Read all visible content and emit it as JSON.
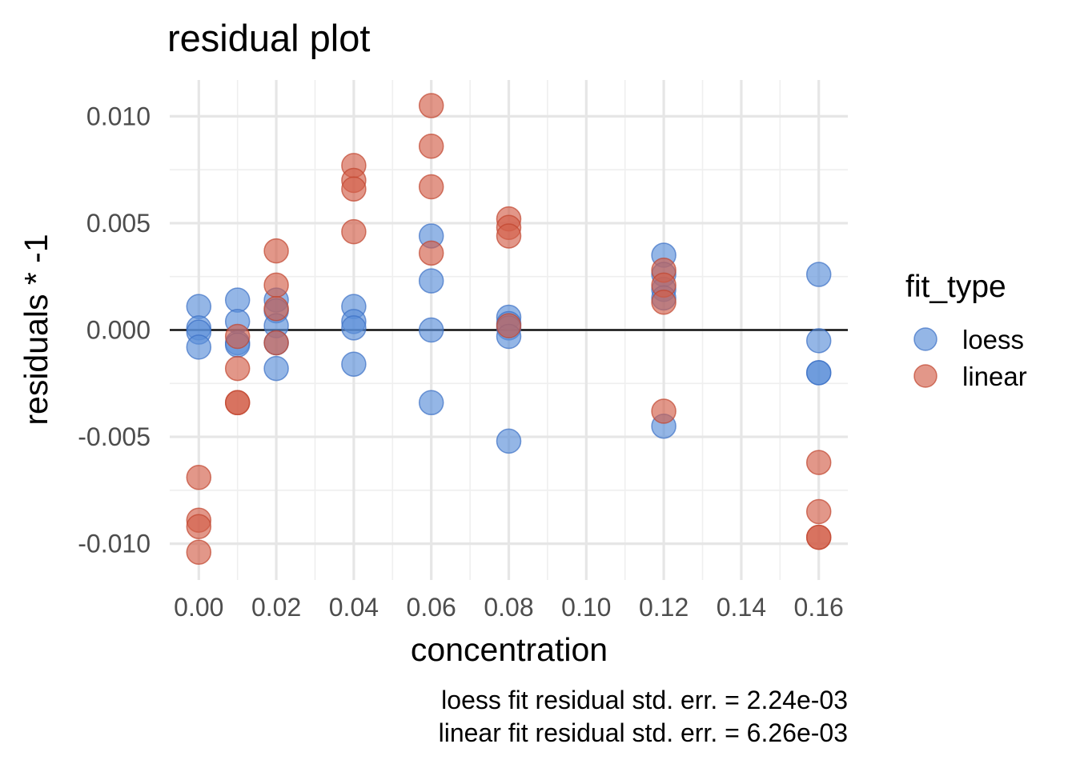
{
  "chart_data": {
    "type": "scatter",
    "title": "residual plot",
    "xlabel": "concentration",
    "ylabel": "residuals * -1",
    "xlim": [
      -0.0075,
      0.1675
    ],
    "ylim": [
      -0.0117,
      0.0117
    ],
    "x_ticks": [
      0.0,
      0.02,
      0.04,
      0.06,
      0.08,
      0.1,
      0.12,
      0.14,
      0.16
    ],
    "x_tick_labels": [
      "0.00",
      "0.02",
      "0.04",
      "0.06",
      "0.08",
      "0.10",
      "0.12",
      "0.14",
      "0.16"
    ],
    "y_ticks": [
      -0.01,
      -0.005,
      0.0,
      0.005,
      0.01
    ],
    "y_tick_labels": [
      "-0.010",
      "-0.005",
      "0.000",
      "0.005",
      "0.010"
    ],
    "grid": true,
    "reference_line_y": 0.0,
    "legend": {
      "title": "fit_type",
      "position": "right",
      "entries": [
        {
          "label": "loess",
          "color": "#5b8fd9"
        },
        {
          "label": "linear",
          "color": "#d3604a"
        }
      ]
    },
    "series": [
      {
        "name": "loess",
        "color": "#5b8fd9",
        "points": [
          [
            0.0,
            0.0011
          ],
          [
            0.0,
            0.0001
          ],
          [
            0.0,
            -0.0001
          ],
          [
            0.0,
            -0.0008
          ],
          [
            0.01,
            0.0014
          ],
          [
            0.01,
            0.0004
          ],
          [
            0.01,
            -0.0006
          ],
          [
            0.01,
            -0.0007
          ],
          [
            0.02,
            0.0014
          ],
          [
            0.02,
            0.0009
          ],
          [
            0.02,
            0.0002
          ],
          [
            0.02,
            -0.0006
          ],
          [
            0.02,
            -0.0018
          ],
          [
            0.04,
            0.0011
          ],
          [
            0.04,
            0.0004
          ],
          [
            0.04,
            0.0001
          ],
          [
            0.04,
            -0.0016
          ],
          [
            0.06,
            0.0044
          ],
          [
            0.06,
            0.0023
          ],
          [
            0.06,
            0.0
          ],
          [
            0.06,
            -0.0034
          ],
          [
            0.08,
            0.0006
          ],
          [
            0.08,
            0.0003
          ],
          [
            0.08,
            0.0001
          ],
          [
            0.08,
            -0.0003
          ],
          [
            0.08,
            -0.0052
          ],
          [
            0.12,
            0.0035
          ],
          [
            0.12,
            0.0026
          ],
          [
            0.12,
            0.0019
          ],
          [
            0.12,
            0.0015
          ],
          [
            0.12,
            -0.0045
          ],
          [
            0.16,
            0.0026
          ],
          [
            0.16,
            -0.0005
          ],
          [
            0.16,
            -0.002
          ],
          [
            0.16,
            -0.002
          ]
        ]
      },
      {
        "name": "linear",
        "color": "#d3604a",
        "points": [
          [
            0.0,
            -0.0069
          ],
          [
            0.0,
            -0.0089
          ],
          [
            0.0,
            -0.0092
          ],
          [
            0.0,
            -0.0104
          ],
          [
            0.01,
            -0.0003
          ],
          [
            0.01,
            -0.0018
          ],
          [
            0.01,
            -0.0034
          ],
          [
            0.01,
            -0.0034
          ],
          [
            0.02,
            0.0037
          ],
          [
            0.02,
            0.0021
          ],
          [
            0.02,
            0.001
          ],
          [
            0.02,
            -0.0006
          ],
          [
            0.04,
            0.0077
          ],
          [
            0.04,
            0.007
          ],
          [
            0.04,
            0.0066
          ],
          [
            0.04,
            0.0046
          ],
          [
            0.06,
            0.0105
          ],
          [
            0.06,
            0.0086
          ],
          [
            0.06,
            0.0067
          ],
          [
            0.06,
            0.0036
          ],
          [
            0.08,
            0.0052
          ],
          [
            0.08,
            0.0048
          ],
          [
            0.08,
            0.0044
          ],
          [
            0.08,
            0.0002
          ],
          [
            0.12,
            0.0028
          ],
          [
            0.12,
            0.0021
          ],
          [
            0.12,
            0.0013
          ],
          [
            0.12,
            -0.0038
          ],
          [
            0.16,
            -0.0062
          ],
          [
            0.16,
            -0.0085
          ],
          [
            0.16,
            -0.0097
          ],
          [
            0.16,
            -0.0097
          ]
        ]
      }
    ],
    "caption_lines": [
      "loess fit residual std. err. = 2.24e-03",
      "linear fit residual std. err. = 6.26e-03"
    ]
  }
}
